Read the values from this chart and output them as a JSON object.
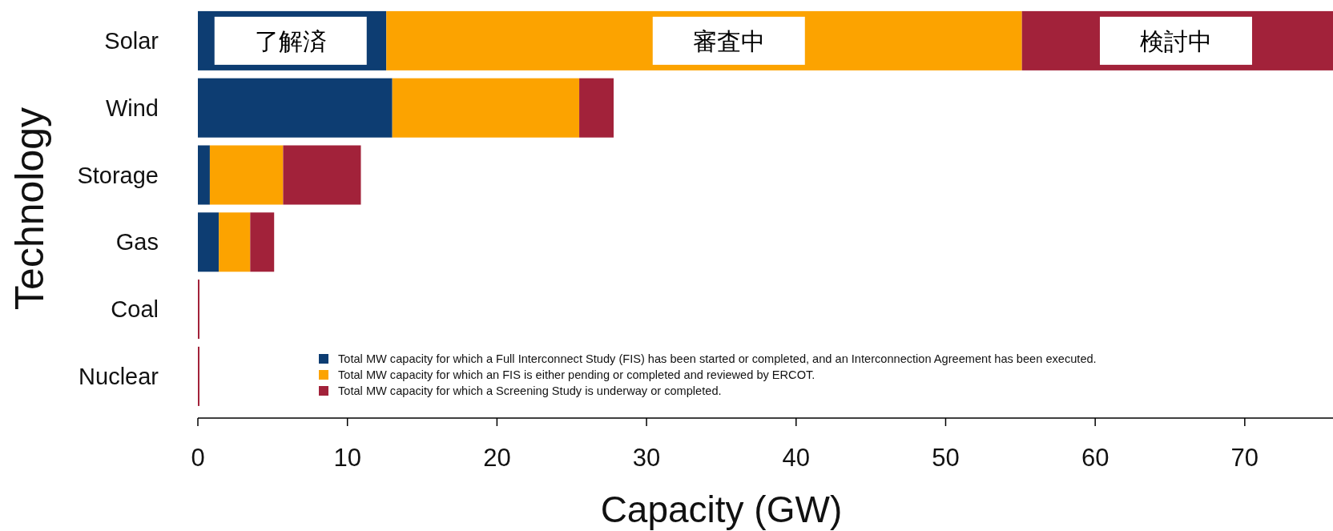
{
  "chart_data": {
    "type": "bar",
    "orientation": "horizontal",
    "stacked": true,
    "categories": [
      "Solar",
      "Wind",
      "Storage",
      "Gas",
      "Coal",
      "Nuclear"
    ],
    "xlabel": "Capacity (GW)",
    "ylabel": "Technology",
    "xlim": [
      0,
      75.9
    ],
    "xticks": [
      0,
      10,
      20,
      30,
      40,
      50,
      60,
      70
    ],
    "legend": "bottom",
    "series": [
      {
        "name": "Total MW capacity for which a Full Interconnect Study (FIS) has been started or completed, and an Interconnection Agreement has been executed.",
        "color": "#0d3d72",
        "values": [
          12.6,
          13.0,
          0.8,
          1.4,
          0,
          0
        ]
      },
      {
        "name": "Total MW capacity for which an FIS is either pending or completed and reviewed by ERCOT.",
        "color": "#fca300",
        "values": [
          42.5,
          12.5,
          4.9,
          2.1,
          0,
          0
        ]
      },
      {
        "name": "Total MW capacity for which a Screening Study is underway or completed.",
        "color": "#a2223a",
        "values": [
          20.8,
          2.3,
          5.2,
          1.6,
          0.1,
          0.1
        ]
      }
    ],
    "annotations": [
      {
        "text": "了解済",
        "x": 6.2,
        "y": "Solar"
      },
      {
        "text": "審査中",
        "x": 35.5,
        "y": "Solar"
      },
      {
        "text": "検討中",
        "x": 65.4,
        "y": "Solar"
      }
    ]
  }
}
